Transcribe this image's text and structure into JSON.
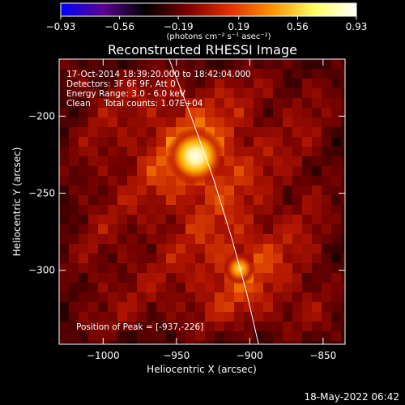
{
  "chart_data": {
    "type": "heatmap",
    "title": "Reconstructed RHESSI Image",
    "xlabel": "Heliocentric X (arcsec)",
    "ylabel": "Heliocentric Y (arcsec)",
    "xlim": [
      -1030,
      -835
    ],
    "ylim": [
      -348,
      -163
    ],
    "x_ticks": [
      {
        "value": -1000,
        "label": "−1000"
      },
      {
        "value": -950,
        "label": "−950"
      },
      {
        "value": -900,
        "label": "−900"
      },
      {
        "value": -850,
        "label": "−850"
      }
    ],
    "y_ticks": [
      {
        "value": -200,
        "label": "−200"
      },
      {
        "value": -250,
        "label": "−250"
      },
      {
        "value": -300,
        "label": "−300"
      }
    ],
    "colorbar": {
      "range": [
        -0.93,
        0.93
      ],
      "ticks": [
        {
          "value": -0.93,
          "label": "−0.93"
        },
        {
          "value": -0.56,
          "label": "−0.56"
        },
        {
          "value": -0.19,
          "label": "−0.19"
        },
        {
          "value": 0.19,
          "label": "0.19"
        },
        {
          "value": 0.56,
          "label": "0.56"
        },
        {
          "value": 0.93,
          "label": "0.93"
        }
      ],
      "units_label": "(photons cm⁻² s⁻¹ asec⁻²)",
      "colors": [
        "#0000ff",
        "#5a0090",
        "#000000",
        "#7a0000",
        "#e03000",
        "#ff9000",
        "#ffff60",
        "#ffffff"
      ]
    },
    "annotations": [
      "17-Oct-2014 18:39:20.000 to 18:42:04.000",
      "Detectors: 3F 6F 9F, Att 0",
      "Energy Range: 3.0 - 6.0 keV",
      "Clean     Total counts: 1.07E+04"
    ],
    "peak_label": "Position of Peak = [-937,-226]",
    "peak": [
      -937,
      -226
    ],
    "sources": [
      {
        "x": -937,
        "y": -226,
        "value": 0.93
      },
      {
        "x": -907,
        "y": -299,
        "value": 0.62
      }
    ],
    "limb": [
      [
        -955,
        -163
      ],
      [
        -940,
        -200
      ],
      [
        -925,
        -240
      ],
      [
        -912,
        -280
      ],
      [
        -902,
        -315
      ],
      [
        -894,
        -348
      ]
    ],
    "grid": false
  },
  "footer": {
    "timestamp": "18-May-2022 06:42"
  }
}
